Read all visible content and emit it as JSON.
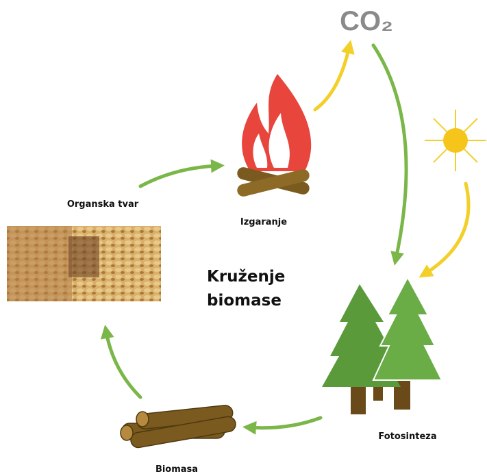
{
  "title": {
    "lines": [
      "Kruženje",
      "biomase"
    ]
  },
  "co2": "CO₂",
  "nodes": [
    {
      "label": "Organska tvar"
    },
    {
      "label": "Izgaranje"
    },
    {
      "label": "Fotosinteza"
    },
    {
      "label": "Biomasa"
    }
  ]
}
